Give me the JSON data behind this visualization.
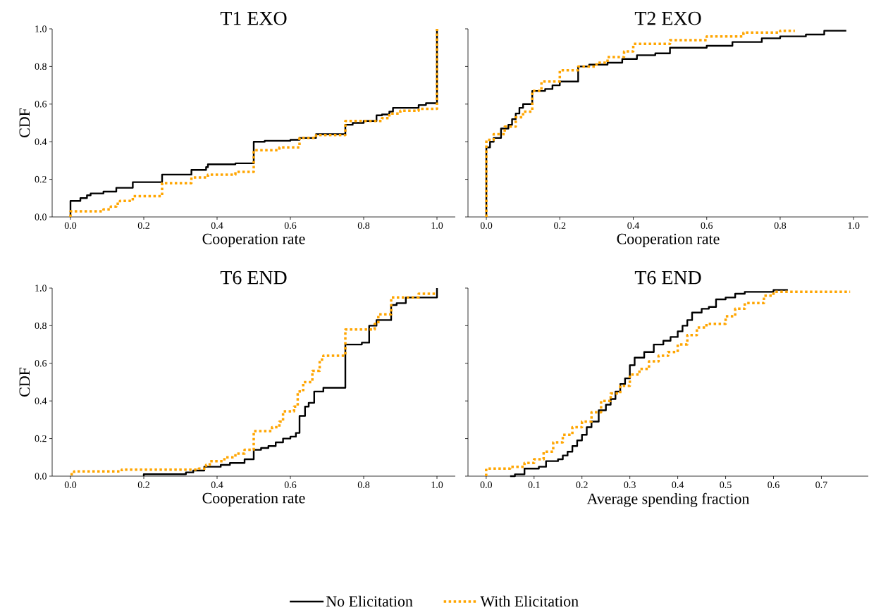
{
  "chart_data": [
    {
      "type": "step",
      "title": "T1 EXO",
      "xlabel": "Cooperation rate",
      "ylabel": "CDF",
      "xlim": [
        -0.05,
        1.05
      ],
      "ylim": [
        0,
        1
      ],
      "xticks": [
        {
          "value": 0,
          "label": "0.0"
        },
        {
          "value": 0.2,
          "label": "0.2"
        },
        {
          "value": 0.4,
          "label": "0.4"
        },
        {
          "value": 0.6,
          "label": "0.6"
        },
        {
          "value": 0.8,
          "label": "0.8"
        },
        {
          "value": 1,
          "label": "1.0"
        }
      ],
      "yticks": [
        {
          "value": 0,
          "label": "0.0"
        },
        {
          "value": 0.2,
          "label": "0.2"
        },
        {
          "value": 0.4,
          "label": "0.4"
        },
        {
          "value": 0.6,
          "label": "0.6"
        },
        {
          "value": 0.8,
          "label": "0.8"
        },
        {
          "value": 1,
          "label": "1.0"
        }
      ],
      "series": [
        {
          "color": "#000000",
          "line_style": "solid",
          "x": [
            0,
            0,
            0.027,
            0.045,
            0.055,
            0.09,
            0.125,
            0.17,
            0.25,
            0.33,
            0.37,
            0.375,
            0.45,
            0.5,
            0.53,
            0.6,
            0.625,
            0.67,
            0.75,
            0.77,
            0.8,
            0.835,
            0.85,
            0.87,
            0.88,
            0.95,
            0.97,
            1.0
          ],
          "values": [
            0,
            0.085,
            0.1,
            0.115,
            0.125,
            0.135,
            0.155,
            0.185,
            0.225,
            0.25,
            0.265,
            0.28,
            0.285,
            0.4,
            0.405,
            0.41,
            0.42,
            0.44,
            0.49,
            0.5,
            0.51,
            0.54,
            0.545,
            0.56,
            0.58,
            0.595,
            0.605,
            1.0
          ]
        },
        {
          "color": "#ffa500",
          "line_style": "dotted",
          "x": [
            0,
            0,
            0.09,
            0.11,
            0.125,
            0.135,
            0.17,
            0.25,
            0.33,
            0.375,
            0.45,
            0.5,
            0.57,
            0.625,
            0.67,
            0.75,
            0.85,
            0.87,
            0.9,
            0.95,
            1.0
          ],
          "values": [
            0,
            0.03,
            0.04,
            0.055,
            0.07,
            0.085,
            0.11,
            0.18,
            0.21,
            0.225,
            0.24,
            0.355,
            0.37,
            0.42,
            0.435,
            0.51,
            0.525,
            0.55,
            0.565,
            0.575,
            1.0
          ]
        }
      ]
    },
    {
      "type": "step",
      "title": "T2 EXO",
      "xlabel": "Cooperation rate",
      "xlim": [
        -0.05,
        1.04
      ],
      "ylim": [
        0,
        1
      ],
      "tick_labels": "x",
      "xticks": [
        {
          "value": 0,
          "label": "0.0"
        },
        {
          "value": 0.2,
          "label": "0.2"
        },
        {
          "value": 0.4,
          "label": "0.4"
        },
        {
          "value": 0.6,
          "label": "0.6"
        },
        {
          "value": 0.8,
          "label": "0.8"
        },
        {
          "value": 1,
          "label": "1.0"
        }
      ],
      "yticks": [
        {
          "value": 0,
          "label": null
        },
        {
          "value": 0.2,
          "label": null
        },
        {
          "value": 0.4,
          "label": null
        },
        {
          "value": 0.6,
          "label": null
        },
        {
          "value": 0.8,
          "label": null
        },
        {
          "value": 1,
          "label": null
        }
      ],
      "series": [
        {
          "color": "#000000",
          "line_style": "solid",
          "x": [
            0,
            0,
            0.01,
            0.02,
            0.04,
            0.06,
            0.07,
            0.08,
            0.09,
            0.1,
            0.125,
            0.16,
            0.18,
            0.2,
            0.25,
            0.28,
            0.33,
            0.37,
            0.41,
            0.46,
            0.5,
            0.6,
            0.67,
            0.75,
            0.8,
            0.87,
            0.92,
            0.98
          ],
          "values": [
            0,
            0.37,
            0.4,
            0.42,
            0.47,
            0.49,
            0.52,
            0.55,
            0.58,
            0.6,
            0.67,
            0.68,
            0.7,
            0.72,
            0.8,
            0.81,
            0.82,
            0.84,
            0.86,
            0.87,
            0.9,
            0.91,
            0.93,
            0.95,
            0.96,
            0.97,
            0.99,
            0.99
          ]
        },
        {
          "color": "#ffa500",
          "line_style": "dotted",
          "x": [
            0,
            0,
            0.02,
            0.05,
            0.08,
            0.1,
            0.125,
            0.15,
            0.2,
            0.25,
            0.3,
            0.33,
            0.375,
            0.4,
            0.5,
            0.6,
            0.7,
            0.8,
            0.84
          ],
          "values": [
            0,
            0.41,
            0.44,
            0.48,
            0.53,
            0.56,
            0.67,
            0.72,
            0.78,
            0.8,
            0.82,
            0.85,
            0.88,
            0.92,
            0.94,
            0.96,
            0.98,
            0.99,
            0.99
          ]
        }
      ]
    },
    {
      "type": "step",
      "title": "T6 END",
      "xlabel": "Cooperation rate",
      "ylabel": "CDF",
      "xlim": [
        -0.05,
        1.05
      ],
      "ylim": [
        0,
        1
      ],
      "xticks": [
        {
          "value": 0,
          "label": "0.0"
        },
        {
          "value": 0.2,
          "label": "0.2"
        },
        {
          "value": 0.4,
          "label": "0.4"
        },
        {
          "value": 0.6,
          "label": "0.6"
        },
        {
          "value": 0.8,
          "label": "0.8"
        },
        {
          "value": 1,
          "label": "1.0"
        }
      ],
      "yticks": [
        {
          "value": 0,
          "label": "0.0"
        },
        {
          "value": 0.2,
          "label": "0.2"
        },
        {
          "value": 0.4,
          "label": "0.4"
        },
        {
          "value": 0.6,
          "label": "0.6"
        },
        {
          "value": 0.8,
          "label": "0.8"
        },
        {
          "value": 1,
          "label": "1.0"
        }
      ],
      "series": [
        {
          "color": "#000000",
          "line_style": "solid",
          "x": [
            0.2,
            0.2,
            0.315,
            0.335,
            0.365,
            0.41,
            0.435,
            0.475,
            0.5,
            0.52,
            0.54,
            0.56,
            0.58,
            0.6,
            0.615,
            0.625,
            0.64,
            0.65,
            0.665,
            0.69,
            0.75,
            0.795,
            0.815,
            0.835,
            0.875,
            0.89,
            0.915,
            1.0
          ],
          "values": [
            0,
            0.01,
            0.02,
            0.03,
            0.05,
            0.06,
            0.07,
            0.09,
            0.14,
            0.15,
            0.16,
            0.18,
            0.2,
            0.21,
            0.23,
            0.32,
            0.37,
            0.39,
            0.45,
            0.47,
            0.7,
            0.71,
            0.8,
            0.83,
            0.91,
            0.92,
            0.95,
            1.0
          ]
        },
        {
          "color": "#ffa500",
          "line_style": "dotted",
          "x": [
            0,
            0.01,
            0.14,
            0.35,
            0.37,
            0.38,
            0.42,
            0.45,
            0.475,
            0.5,
            0.55,
            0.57,
            0.58,
            0.61,
            0.62,
            0.635,
            0.66,
            0.68,
            0.69,
            0.75,
            0.83,
            0.84,
            0.875,
            0.95,
            1.0
          ],
          "values": [
            0.01,
            0.025,
            0.035,
            0.04,
            0.06,
            0.08,
            0.1,
            0.12,
            0.14,
            0.24,
            0.26,
            0.29,
            0.345,
            0.37,
            0.45,
            0.5,
            0.56,
            0.62,
            0.64,
            0.78,
            0.81,
            0.86,
            0.95,
            0.97,
            0.97
          ]
        }
      ]
    },
    {
      "type": "step",
      "title": "T6 END",
      "xlabel": "Average spending fraction",
      "xlim": [
        -0.038,
        0.798
      ],
      "ylim": [
        0,
        1
      ],
      "tick_labels": "x",
      "legend": "bottom",
      "xticks": [
        {
          "value": 0,
          "label": "0.0"
        },
        {
          "value": 0.1,
          "label": "0.1"
        },
        {
          "value": 0.2,
          "label": "0.2"
        },
        {
          "value": 0.3,
          "label": "0.3"
        },
        {
          "value": 0.4,
          "label": "0.4"
        },
        {
          "value": 0.5,
          "label": "0.5"
        },
        {
          "value": 0.6,
          "label": "0.6"
        },
        {
          "value": 0.7,
          "label": "0.7"
        }
      ],
      "yticks": [
        {
          "value": 0,
          "label": null
        },
        {
          "value": 0.2,
          "label": null
        },
        {
          "value": 0.4,
          "label": null
        },
        {
          "value": 0.6,
          "label": null
        },
        {
          "value": 0.8,
          "label": null
        },
        {
          "value": 1,
          "label": null
        }
      ],
      "series": [
        {
          "name": "No Elicitation",
          "color": "#000000",
          "line_style": "solid",
          "x": [
            0.05,
            0.06,
            0.08,
            0.11,
            0.125,
            0.15,
            0.16,
            0.17,
            0.18,
            0.19,
            0.2,
            0.21,
            0.22,
            0.235,
            0.25,
            0.26,
            0.27,
            0.28,
            0.29,
            0.3,
            0.31,
            0.33,
            0.35,
            0.37,
            0.385,
            0.4,
            0.41,
            0.42,
            0.43,
            0.45,
            0.465,
            0.48,
            0.5,
            0.52,
            0.54,
            0.6,
            0.63
          ],
          "values": [
            0,
            0.01,
            0.04,
            0.05,
            0.08,
            0.09,
            0.11,
            0.13,
            0.16,
            0.19,
            0.22,
            0.26,
            0.29,
            0.35,
            0.38,
            0.41,
            0.45,
            0.49,
            0.52,
            0.59,
            0.63,
            0.66,
            0.7,
            0.72,
            0.74,
            0.77,
            0.8,
            0.83,
            0.87,
            0.89,
            0.9,
            0.94,
            0.95,
            0.97,
            0.98,
            0.99,
            0.99
          ]
        },
        {
          "name": "With Elicitation",
          "color": "#ffa500",
          "line_style": "dotted",
          "x": [
            0,
            0,
            0.05,
            0.08,
            0.1,
            0.12,
            0.14,
            0.16,
            0.18,
            0.2,
            0.22,
            0.24,
            0.26,
            0.28,
            0.3,
            0.32,
            0.34,
            0.36,
            0.38,
            0.4,
            0.42,
            0.44,
            0.46,
            0.5,
            0.52,
            0.54,
            0.58,
            0.6,
            0.65,
            0.76
          ],
          "values": [
            0,
            0.04,
            0.05,
            0.07,
            0.09,
            0.13,
            0.18,
            0.22,
            0.26,
            0.29,
            0.34,
            0.4,
            0.44,
            0.48,
            0.54,
            0.57,
            0.61,
            0.64,
            0.66,
            0.7,
            0.75,
            0.79,
            0.81,
            0.85,
            0.89,
            0.92,
            0.96,
            0.98,
            0.98,
            0.98
          ]
        }
      ]
    }
  ]
}
